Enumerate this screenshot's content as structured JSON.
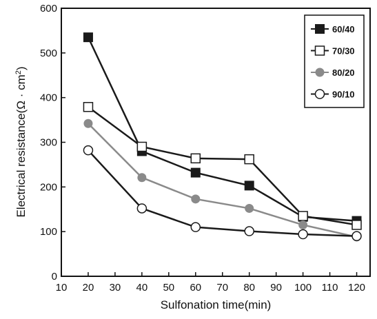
{
  "chart_data": {
    "type": "line",
    "xlabel": "Sulfonation time(min)",
    "ylabel": "Electrical resistance(Ω · cm²)",
    "ylabel_parts": {
      "main": "Electrical resistance(Ω · cm",
      "sup": "2",
      "tail": ")"
    },
    "xlim": [
      10,
      125
    ],
    "ylim": [
      0,
      600
    ],
    "xticks": [
      10,
      20,
      30,
      40,
      50,
      60,
      70,
      80,
      90,
      100,
      110,
      120
    ],
    "yticks": [
      0,
      100,
      200,
      300,
      400,
      500,
      600
    ],
    "grid": false,
    "legend_position": "top-right",
    "x": [
      20,
      40,
      60,
      80,
      100,
      120
    ],
    "series": [
      {
        "name": "60/40",
        "marker": "filled-square",
        "color": "#1a1a1a",
        "values": [
          535,
          280,
          232,
          203,
          133,
          124
        ]
      },
      {
        "name": "70/30",
        "marker": "open-square",
        "color": "#1a1a1a",
        "values": [
          379,
          290,
          264,
          262,
          135,
          115
        ]
      },
      {
        "name": "80/20",
        "marker": "filled-circle",
        "color": "#8a8a8a",
        "values": [
          342,
          221,
          173,
          152,
          115,
          88
        ]
      },
      {
        "name": "90/10",
        "marker": "open-circle",
        "color": "#1a1a1a",
        "values": [
          282,
          152,
          110,
          101,
          94,
          90
        ]
      }
    ]
  }
}
